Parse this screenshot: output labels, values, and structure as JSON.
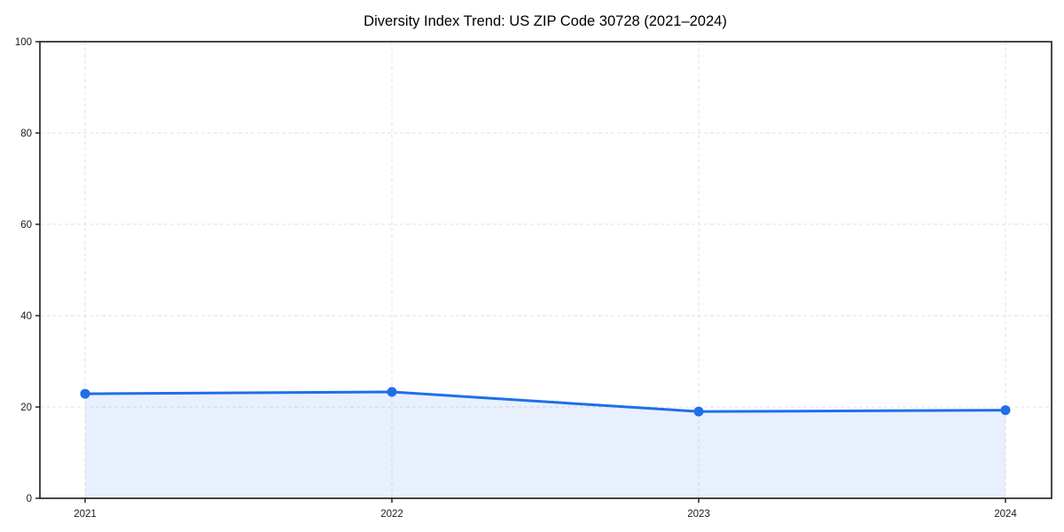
{
  "chart_data": {
    "type": "area",
    "title": "Diversity Index Trend: US ZIP Code 30728 (2021–2024)",
    "xlabel": "",
    "ylabel": "",
    "categories": [
      "2021",
      "2022",
      "2023",
      "2024"
    ],
    "series": [
      {
        "name": "Diversity Index",
        "values": [
          22.9,
          23.3,
          19.0,
          19.3
        ]
      }
    ],
    "ylim": [
      0,
      100
    ],
    "yticks": [
      0,
      20,
      40,
      60,
      80,
      100
    ],
    "grid": "dashed",
    "legend_position": "none",
    "colors": {
      "line": "#1f6fe8",
      "marker": "#1f6fe8",
      "fill": "#1f6fe8",
      "fill_opacity": 0.1,
      "grid": "#e2e2e2",
      "axis": "#1a1a1a",
      "background": "#ffffff",
      "tick_text": "#1a1a1a",
      "title_text": "#000000"
    }
  }
}
